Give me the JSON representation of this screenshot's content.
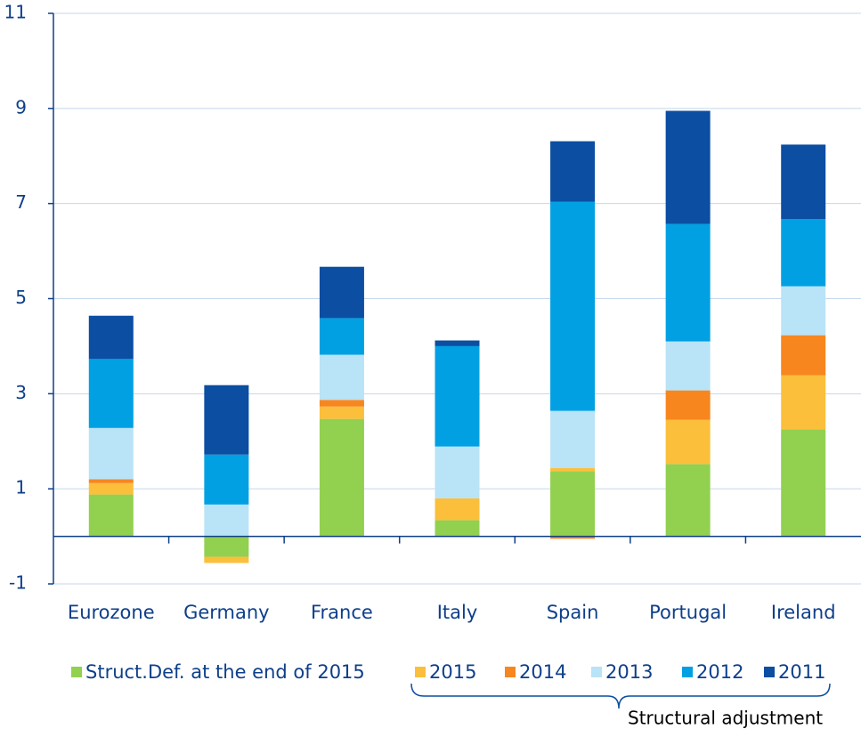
{
  "chart_data": {
    "type": "bar",
    "stacked": true,
    "categories": [
      "Eurozone",
      "Germany",
      "France",
      "Italy",
      "Spain",
      "Portugal",
      "Ireland"
    ],
    "series": [
      {
        "name": "Struct.Def. at the end of 2015",
        "color": "#92d050",
        "values": [
          0.88,
          -0.43,
          2.47,
          0.34,
          1.37,
          1.52,
          2.25
        ]
      },
      {
        "name": "2015",
        "color": "#fbbf3b",
        "values": [
          0.24,
          -0.13,
          0.26,
          0.46,
          0.07,
          0.93,
          1.14
        ]
      },
      {
        "name": "2014",
        "color": "#f7861f",
        "values": [
          0.08,
          0,
          0.14,
          0,
          -0.05,
          0.62,
          0.84
        ]
      },
      {
        "name": "2013",
        "color": "#b9e3f7",
        "values": [
          1.08,
          0.67,
          0.95,
          1.09,
          1.2,
          1.03,
          1.03
        ]
      },
      {
        "name": "2012",
        "color": "#00a0e3",
        "values": [
          1.45,
          1.05,
          0.77,
          2.11,
          4.4,
          2.47,
          1.41
        ]
      },
      {
        "name": "2011",
        "color": "#0b4ea2",
        "values": [
          0.91,
          1.46,
          1.08,
          0.12,
          1.27,
          2.38,
          1.57
        ]
      }
    ],
    "ylim": [
      -1,
      11
    ],
    "yticks": [
      -1,
      1,
      3,
      5,
      7,
      9,
      11
    ],
    "grid": true,
    "annotation": "Structural adjustment"
  }
}
